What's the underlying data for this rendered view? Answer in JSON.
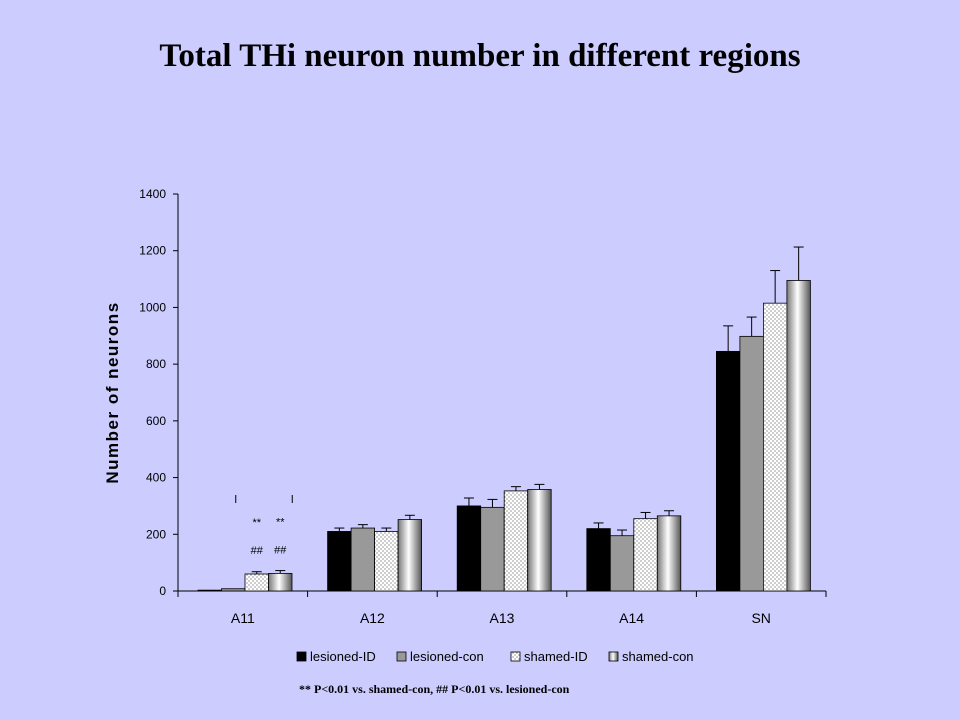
{
  "title": "Total THi neuron number in different regions",
  "footnote": "** P<0.01 vs. shamed-con,  ## P<0.01 vs. lesioned-con",
  "chart_data": {
    "type": "bar",
    "ylabel": "Number of neurons",
    "xlabel": "",
    "ylim": [
      0,
      1400
    ],
    "yticks": [
      "0",
      "200",
      "400",
      "600",
      "800",
      "1000",
      "1200",
      "1400"
    ],
    "categories": [
      "A11",
      "A12",
      "A13",
      "A14",
      "SN"
    ],
    "legend_position": "bottom",
    "series": [
      {
        "name": "lesioned-ID",
        "fill": "black",
        "values": [
          3,
          210,
          300,
          220,
          845
        ],
        "errors": [
          0,
          12,
          28,
          20,
          90
        ]
      },
      {
        "name": "lesioned-con",
        "fill": "gray",
        "values": [
          8,
          222,
          295,
          195,
          898
        ],
        "errors": [
          0,
          12,
          28,
          20,
          68
        ]
      },
      {
        "name": "shamed-ID",
        "fill": "dotted",
        "values": [
          60,
          210,
          353,
          255,
          1015
        ],
        "errors": [
          8,
          12,
          15,
          22,
          115
        ]
      },
      {
        "name": "shamed-con",
        "fill": "cylinder",
        "values": [
          62,
          252,
          358,
          265,
          1095
        ],
        "errors": [
          10,
          15,
          18,
          18,
          118
        ]
      }
    ],
    "annotations": [
      {
        "category": "A11",
        "series": "shamed-ID",
        "lines": [
          "**",
          "##"
        ]
      },
      {
        "category": "A11",
        "series": "shamed-con",
        "lines": [
          "**",
          "##"
        ]
      }
    ],
    "colors": {
      "background": "#ccccff",
      "lesioned-ID": "#000000",
      "lesioned-con": "#999999",
      "shamed-ID": "#ffffff"
    }
  }
}
